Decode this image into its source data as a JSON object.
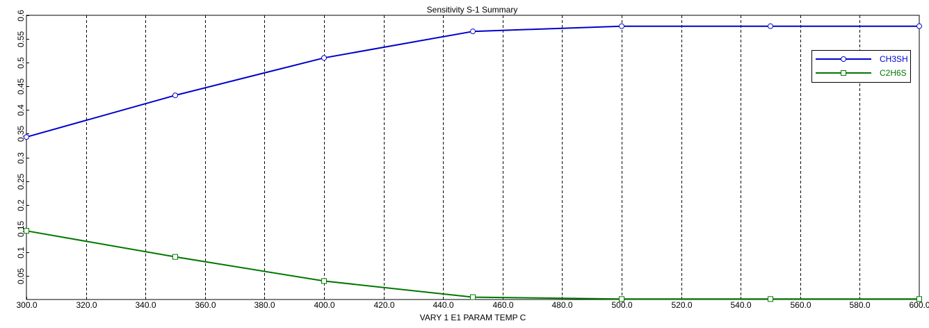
{
  "chart_data": {
    "type": "line",
    "title": "Sensitivity S-1 Summary",
    "xlabel": "VARY   1 E1 PARAM TEMP  C",
    "ylabel": "",
    "xlim": [
      300,
      600
    ],
    "ylim": [
      0,
      0.6
    ],
    "x_ticks": [
      "300.0",
      "320.0",
      "340.0",
      "360.0",
      "380.0",
      "400.0",
      "420.0",
      "440.0",
      "460.0",
      "480.0",
      "500.0",
      "520.0",
      "540.0",
      "560.0",
      "580.0",
      "600.0"
    ],
    "y_ticks": [
      "0.05",
      "0.1",
      "0.15",
      "0.2",
      "0.25",
      "0.3",
      "0.35",
      "0.4",
      "0.45",
      "0.5",
      "0.55",
      "0.6"
    ],
    "grid": "vertical dashed",
    "legend_position": "top-right",
    "x": [
      300,
      350,
      400,
      450,
      500,
      550,
      600
    ],
    "series": [
      {
        "name": "CH3SH",
        "color": "#0000cc",
        "marker": "circle",
        "values": [
          0.343,
          0.431,
          0.51,
          0.566,
          0.577,
          0.577,
          0.577
        ]
      },
      {
        "name": "C2H6S",
        "color": "#007700",
        "marker": "square",
        "values": [
          0.145,
          0.09,
          0.039,
          0.005,
          0.001,
          0.001,
          0.001
        ]
      }
    ]
  }
}
